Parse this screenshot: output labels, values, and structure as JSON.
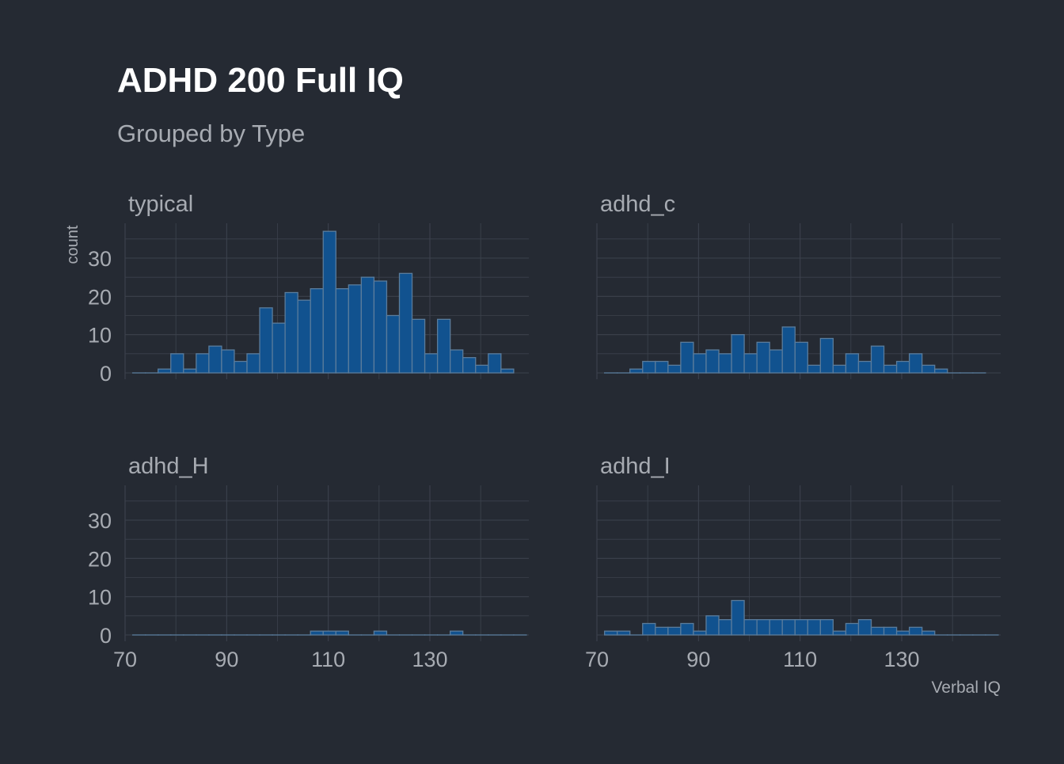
{
  "chart_data": {
    "type": "bar",
    "title": "ADHD 200 Full IQ",
    "subtitle": "Grouped by Type",
    "xlabel": "Verbal IQ",
    "ylabel": "count",
    "xlim": [
      70,
      147
    ],
    "ylim": [
      0,
      38
    ],
    "x_ticks": [
      70,
      90,
      110,
      130
    ],
    "y_ticks": [
      0,
      10,
      20,
      30
    ],
    "grid": true,
    "bin_start": 71.5,
    "bin_width": 5.0,
    "bins_note": "",
    "colors": {
      "background": "#252a33",
      "bar_fill": "#11528f",
      "bar_stroke": "#5a7c9c",
      "grid": "#3c424d",
      "title": "#ffffff",
      "subtitle": "#a7abb2",
      "axis_text": "#a7abb2"
    },
    "panels": [
      {
        "label": "typical",
        "counts": [
          0,
          0,
          1,
          5,
          1,
          5,
          7,
          6,
          3,
          5,
          17,
          13,
          21,
          19,
          22,
          37,
          22,
          23,
          25,
          24,
          15,
          26,
          14,
          5,
          14,
          6,
          4,
          2,
          5,
          1
        ]
      },
      {
        "label": "adhd_c",
        "counts": [
          0,
          0,
          1,
          3,
          3,
          2,
          8,
          5,
          6,
          5,
          10,
          5,
          8,
          6,
          12,
          8,
          2,
          9,
          2,
          5,
          3,
          7,
          2,
          3,
          5,
          2,
          1,
          0,
          0,
          0
        ]
      },
      {
        "label": "adhd_H",
        "counts": [
          0,
          0,
          0,
          0,
          0,
          0,
          0,
          0,
          0,
          0,
          0,
          0,
          0,
          0,
          1,
          1,
          1,
          0,
          0,
          1,
          0,
          0,
          0,
          0,
          0,
          1,
          0,
          0,
          0,
          0,
          0,
          0,
          0,
          0,
          0,
          0
        ]
      },
      {
        "label": "adhd_I",
        "counts": [
          1,
          1,
          0,
          3,
          2,
          2,
          3,
          1,
          5,
          4,
          9,
          4,
          4,
          4,
          4,
          4,
          4,
          4,
          1,
          3,
          4,
          2,
          2,
          1,
          2,
          1,
          0,
          0,
          0,
          0,
          0
        ]
      }
    ]
  }
}
